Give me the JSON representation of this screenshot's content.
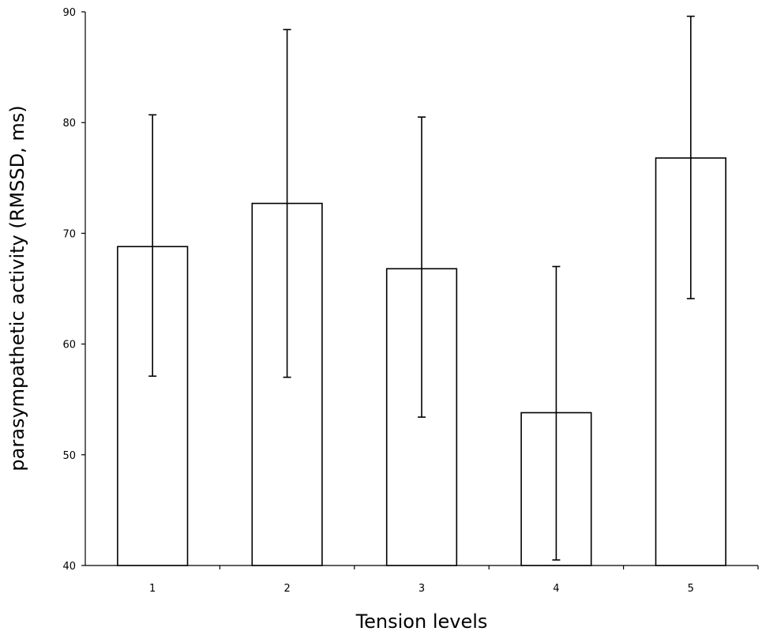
{
  "chart_data": {
    "type": "bar",
    "title": "",
    "xlabel": "Tension levels",
    "ylabel": "parasympathetic activity (RMSSD, ms)",
    "categories": [
      "1",
      "2",
      "3",
      "4",
      "5"
    ],
    "values": [
      68.8,
      72.7,
      66.8,
      53.8,
      76.8
    ],
    "error_low": [
      57.1,
      57.0,
      53.4,
      40.5,
      64.1
    ],
    "error_high": [
      80.7,
      88.4,
      80.5,
      67.0,
      89.6
    ],
    "ylim": [
      40,
      90
    ],
    "yticks": [
      "40",
      "50",
      "60",
      "70",
      "80",
      "90"
    ],
    "grid": false,
    "legend": "none",
    "bar_fill": "#ffffff",
    "bar_stroke": "#000000"
  }
}
